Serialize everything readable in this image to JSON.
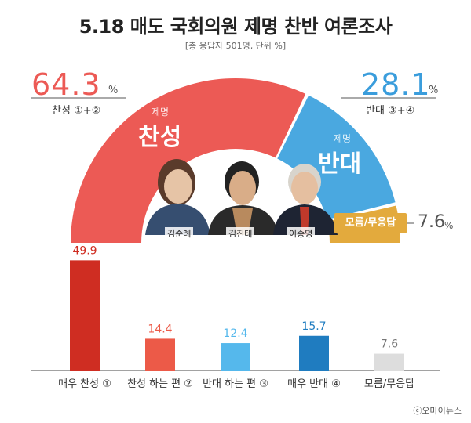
{
  "header": {
    "title": "5.18 매도 국회의원 제명 찬반 여론조사",
    "subtitle": "[총 응답자 501명, 단위 %]"
  },
  "gauge": {
    "approve": {
      "value": "64.3",
      "pct": "%",
      "label": "찬성 ①+②",
      "arc_small": "제명",
      "arc_big": "찬성",
      "color": "#ec5a55"
    },
    "oppose": {
      "value": "28.1",
      "pct": "%",
      "label": "반대 ③+④",
      "arc_small": "제명",
      "arc_big": "반대",
      "color": "#4aa8e0"
    },
    "dontknow": {
      "value": "7.6",
      "pct": "%",
      "label": "모름/무응답",
      "color": "#e3aa3d"
    },
    "people": [
      "김순례",
      "김진태",
      "이종명"
    ]
  },
  "chart_data": {
    "type": "bar",
    "categories": [
      "매우 찬성 ①",
      "찬성 하는 편 ②",
      "반대 하는 편 ③",
      "매우 반대 ④",
      "모름/무응답"
    ],
    "values": [
      49.9,
      14.4,
      12.4,
      15.7,
      7.6
    ],
    "colors": [
      "#cf2d22",
      "#ec5a48",
      "#55b8ec",
      "#1f7cc0",
      "#dddddd"
    ],
    "label_colors": [
      "#cf2d22",
      "#ec5a48",
      "#55b8ec",
      "#1f7cc0",
      "#777777"
    ],
    "ylim": [
      0,
      55
    ]
  },
  "footer": {
    "credit": "ⓒ오마이뉴스"
  }
}
